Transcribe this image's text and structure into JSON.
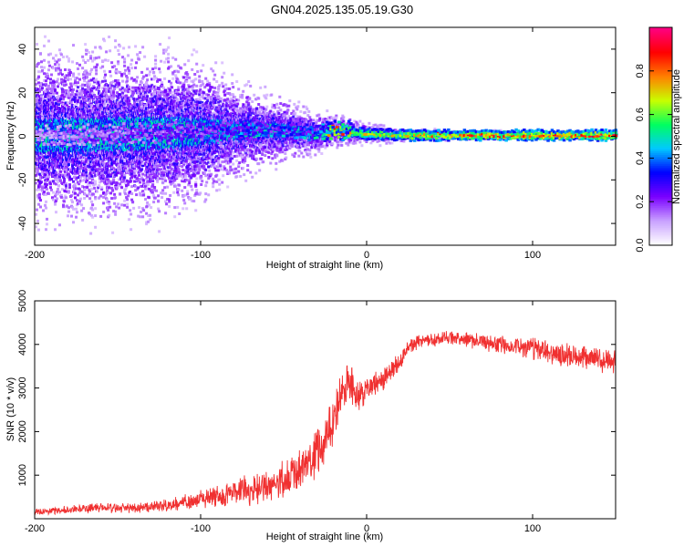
{
  "title": "GN04.2025.135.05.19.G30",
  "chart_data": [
    {
      "type": "heatmap",
      "xlabel": "Height of straight line (km)",
      "ylabel": "Frequency (Hz)",
      "xlim": [
        -200,
        150
      ],
      "ylim": [
        -50,
        50
      ],
      "xticks": [
        -200,
        -100,
        0,
        100
      ],
      "xtick_labels": [
        "-200",
        "-100",
        "0",
        "100"
      ],
      "yticks": [
        -40,
        -20,
        0,
        20,
        40
      ],
      "ytick_labels": [
        "-40",
        "-20",
        "0",
        "20",
        "40"
      ],
      "ridge": {
        "description": "dominant line near 0 Hz",
        "x": [
          -200,
          -150,
          -100,
          -60,
          -40,
          -30,
          -20,
          -10,
          0,
          20,
          50,
          100,
          150
        ],
        "freq": [
          0,
          1,
          2,
          3,
          2,
          1,
          3,
          2,
          1,
          0.5,
          0.5,
          0.5,
          0.5
        ],
        "amplitude": [
          0.2,
          0.3,
          0.4,
          0.5,
          0.5,
          0.6,
          0.9,
          0.85,
          0.8,
          0.85,
          0.9,
          0.95,
          0.95
        ]
      },
      "scatter_spread_hz": {
        "x": [
          -200,
          -150,
          -120,
          -100,
          -80,
          -60,
          -40,
          -20,
          0,
          20,
          50,
          100,
          150
        ],
        "halfwidth": [
          50,
          50,
          48,
          40,
          28,
          22,
          15,
          10,
          6,
          4,
          3,
          2.5,
          2.5
        ]
      }
    },
    {
      "type": "colorbar",
      "label": "Normalized spectral amplitude",
      "range": [
        0,
        1
      ],
      "ticks": [
        0.0,
        0.2,
        0.4,
        0.6,
        0.8
      ],
      "tick_labels": [
        "0.0",
        "0.2",
        "0.4",
        "0.6",
        "0.8"
      ],
      "colors": [
        "#ffffff",
        "#c8a0ff",
        "#7a00ff",
        "#0000ff",
        "#00c8ff",
        "#00ff60",
        "#c8ff00",
        "#ff8000",
        "#ff0000",
        "#ff0080"
      ]
    },
    {
      "type": "line",
      "xlabel": "Height of straight line (km)",
      "ylabel": "SNR (10 * v/v)",
      "xlim": [
        -200,
        150
      ],
      "ylim": [
        0,
        5000
      ],
      "xticks": [
        -200,
        -100,
        0,
        100
      ],
      "xtick_labels": [
        "-200",
        "-100",
        "0",
        "100"
      ],
      "yticks": [
        1000,
        2000,
        3000,
        4000,
        5000
      ],
      "ytick_labels": [
        "1000",
        "2000",
        "3000",
        "4000",
        "5000"
      ],
      "series": [
        {
          "name": "SNR",
          "color": "#f03030",
          "x": [
            -200,
            -180,
            -160,
            -140,
            -120,
            -100,
            -80,
            -60,
            -50,
            -40,
            -30,
            -25,
            -20,
            -15,
            -10,
            -5,
            0,
            10,
            20,
            25,
            30,
            40,
            50,
            60,
            80,
            100,
            120,
            150
          ],
          "y": [
            150,
            200,
            250,
            250,
            300,
            450,
            600,
            750,
            900,
            1100,
            1500,
            1700,
            2400,
            2800,
            3100,
            2700,
            3000,
            3200,
            3600,
            3900,
            4050,
            4100,
            4150,
            4100,
            4000,
            3900,
            3750,
            3600
          ],
          "noise": [
            100,
            110,
            120,
            130,
            170,
            250,
            350,
            450,
            500,
            550,
            650,
            700,
            700,
            650,
            600,
            500,
            350,
            300,
            250,
            220,
            200,
            180,
            180,
            200,
            250,
            300,
            320,
            300
          ]
        }
      ]
    }
  ]
}
